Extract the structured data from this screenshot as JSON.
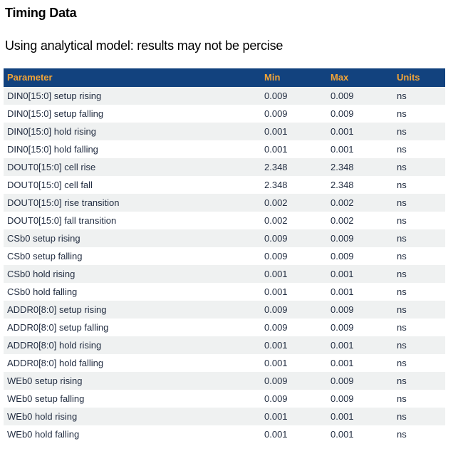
{
  "page": {
    "title": "Timing Data",
    "subtitle": "Using analytical model: results may not be percise"
  },
  "table": {
    "columns": [
      "Parameter",
      "Min",
      "Max",
      "Units"
    ],
    "rows": [
      {
        "parameter": "DIN0[15:0] setup rising",
        "min": "0.009",
        "max": "0.009",
        "units": "ns"
      },
      {
        "parameter": "DIN0[15:0] setup falling",
        "min": "0.009",
        "max": "0.009",
        "units": "ns"
      },
      {
        "parameter": "DIN0[15:0] hold rising",
        "min": "0.001",
        "max": "0.001",
        "units": "ns"
      },
      {
        "parameter": "DIN0[15:0] hold falling",
        "min": "0.001",
        "max": "0.001",
        "units": "ns"
      },
      {
        "parameter": "DOUT0[15:0] cell rise",
        "min": "2.348",
        "max": "2.348",
        "units": "ns"
      },
      {
        "parameter": "DOUT0[15:0] cell fall",
        "min": "2.348",
        "max": "2.348",
        "units": "ns"
      },
      {
        "parameter": "DOUT0[15:0] rise transition",
        "min": "0.002",
        "max": "0.002",
        "units": "ns"
      },
      {
        "parameter": "DOUT0[15:0] fall transition",
        "min": "0.002",
        "max": "0.002",
        "units": "ns"
      },
      {
        "parameter": "CSb0 setup rising",
        "min": "0.009",
        "max": "0.009",
        "units": "ns"
      },
      {
        "parameter": "CSb0 setup falling",
        "min": "0.009",
        "max": "0.009",
        "units": "ns"
      },
      {
        "parameter": "CSb0 hold rising",
        "min": "0.001",
        "max": "0.001",
        "units": "ns"
      },
      {
        "parameter": "CSb0 hold falling",
        "min": "0.001",
        "max": "0.001",
        "units": "ns"
      },
      {
        "parameter": "ADDR0[8:0] setup rising",
        "min": "0.009",
        "max": "0.009",
        "units": "ns"
      },
      {
        "parameter": "ADDR0[8:0] setup falling",
        "min": "0.009",
        "max": "0.009",
        "units": "ns"
      },
      {
        "parameter": "ADDR0[8:0] hold rising",
        "min": "0.001",
        "max": "0.001",
        "units": "ns"
      },
      {
        "parameter": "ADDR0[8:0] hold falling",
        "min": "0.001",
        "max": "0.001",
        "units": "ns"
      },
      {
        "parameter": "WEb0 setup rising",
        "min": "0.009",
        "max": "0.009",
        "units": "ns"
      },
      {
        "parameter": "WEb0 setup falling",
        "min": "0.009",
        "max": "0.009",
        "units": "ns"
      },
      {
        "parameter": "WEb0 hold rising",
        "min": "0.001",
        "max": "0.001",
        "units": "ns"
      },
      {
        "parameter": "WEb0 hold falling",
        "min": "0.001",
        "max": "0.001",
        "units": "ns"
      }
    ]
  },
  "colors": {
    "header_bg": "#12427E",
    "header_text": "#F2A437",
    "row_alt_bg": "#EFF1F1",
    "row_text": "#232E42",
    "page_bg": "#FFFFFF"
  }
}
